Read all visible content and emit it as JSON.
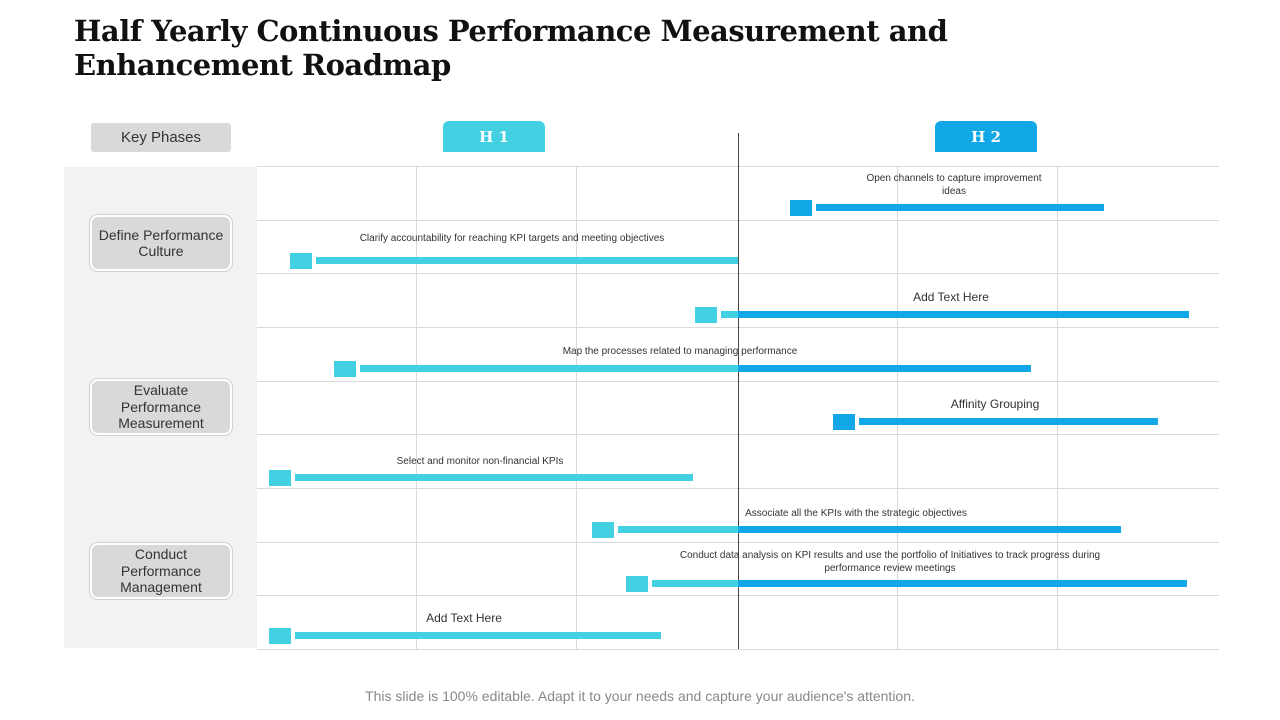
{
  "title": "Half Yearly Continuous Performance Measurement and Enhancement Roadmap",
  "key_phases_label": "Key Phases",
  "halves": [
    "H 1",
    "H 2"
  ],
  "phases": [
    "Define Performance Culture",
    "Evaluate Performance Measurement",
    "Conduct Performance Management"
  ],
  "tasks": [
    "Open channels to capture improvement ideas",
    "Clarify accountability for reaching KPI targets and meeting objectives",
    "Add Text Here",
    "Map the processes related to managing performance",
    "Affinity Grouping",
    "Select and monitor non-financial KPIs",
    "Associate all the KPIs  with the strategic objectives",
    "Conduct data analysis on KPI results and use the portfolio of Initiatives to track progress during performance review meetings",
    "Add Text Here"
  ],
  "colors": {
    "h1": "#44d0e3",
    "h2": "#12a8e8",
    "marker_h1": "#44d0e3",
    "marker_h2": "#12a8e8"
  },
  "footer": "This slide is 100% editable. Adapt it to your needs and capture your audience's attention."
}
